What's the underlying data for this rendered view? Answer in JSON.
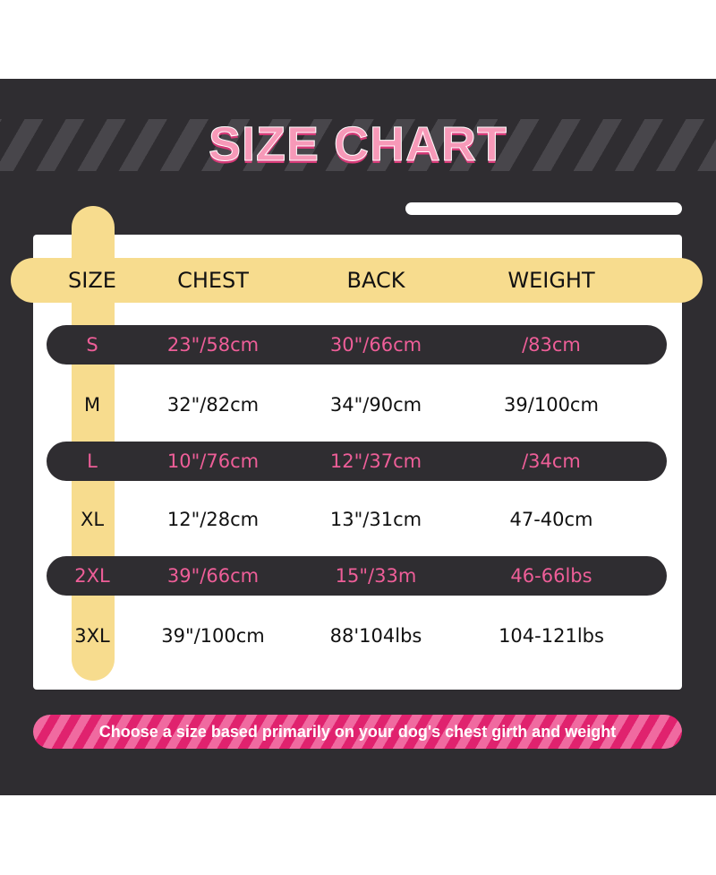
{
  "title": "SIZE CHART",
  "colors": {
    "background": "#2f2d31",
    "accent_pink": "#ee5e98",
    "yellow": "#f7dc8e"
  },
  "headers": [
    "SIZE",
    "CHEST",
    "BACK",
    "WEIGHT"
  ],
  "rows": [
    {
      "size": "S",
      "chest": "23\"/58cm",
      "back": "30\"/66cm",
      "weight": "/83cm",
      "highlight": true
    },
    {
      "size": "M",
      "chest": "32\"/82cm",
      "back": "34\"/90cm",
      "weight": "39/100cm",
      "highlight": false
    },
    {
      "size": "L",
      "chest": "10\"/76cm",
      "back": "12\"/37cm",
      "weight": "/34cm",
      "highlight": true
    },
    {
      "size": "XL",
      "chest": "12\"/28cm",
      "back": "13\"/31cm",
      "weight": "47-40cm",
      "highlight": false
    },
    {
      "size": "2XL",
      "chest": "39\"/66cm",
      "back": "15\"/33m",
      "weight": "46-66lbs",
      "highlight": true
    },
    {
      "size": "3XL",
      "chest": "39\"/100cm",
      "back": "88'104lbs",
      "weight": "104-121lbs",
      "highlight": false
    }
  ],
  "footer": "Choose a size based primarily on your dog's chest girth and weight"
}
